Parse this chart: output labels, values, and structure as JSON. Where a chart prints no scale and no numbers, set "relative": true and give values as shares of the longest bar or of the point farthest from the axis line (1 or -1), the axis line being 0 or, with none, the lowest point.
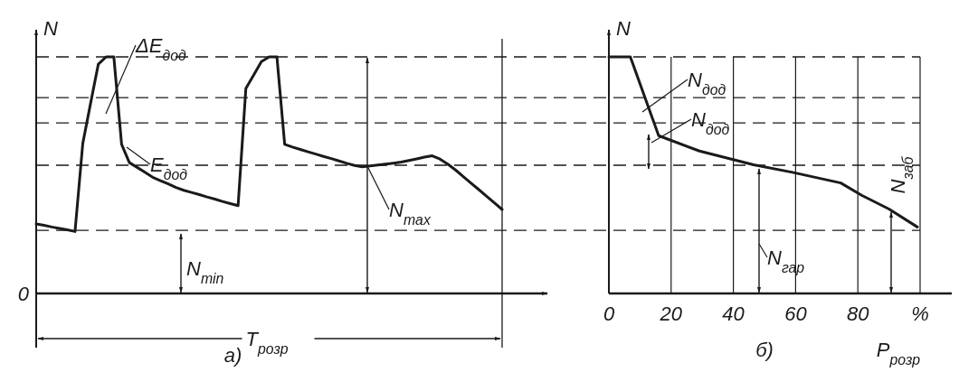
{
  "chart_data": [
    {
      "type": "line",
      "relative": true,
      "ylabel": "N",
      "xlabel": "T$_{розр}$",
      "subtitle": "а)",
      "color": "#1a1a1a",
      "line_style": "solid",
      "categories": [
        null,
        null,
        null,
        null,
        null,
        null,
        null,
        null,
        null,
        null,
        null,
        null,
        null,
        null,
        null,
        null,
        null,
        null,
        null,
        null,
        null,
        null,
        null,
        null,
        null,
        null,
        null,
        null,
        null,
        null,
        null,
        null,
        null,
        null,
        null,
        null,
        null,
        null,
        null,
        null,
        null,
        null,
        null,
        null,
        null,
        null,
        null,
        null,
        null,
        null,
        null,
        null,
        null,
        null,
        null,
        null,
        null,
        null,
        null,
        null,
        null
      ],
      "values": [
        0.294,
        0.288,
        0.281,
        0.275,
        0.269,
        0.262,
        0.634,
        0.803,
        0.969,
        1,
        1,
        0.63,
        0.553,
        0.533,
        0.512,
        0.491,
        0.477,
        0.463,
        0.448,
        0.436,
        0.427,
        0.418,
        0.408,
        0.399,
        0.389,
        0.38,
        0.371,
        0.866,
        0.923,
        0.98,
        1,
        1,
        0.63,
        0.619,
        0.609,
        0.599,
        0.589,
        0.579,
        0.57,
        0.56,
        0.55,
        0.541,
        0.535,
        0.539,
        0.543,
        0.547,
        0.551,
        0.555,
        0.562,
        0.569,
        0.576,
        0.582,
        0.568,
        0.547,
        0.522,
        0.494,
        0.466,
        0.439,
        0.411,
        0.383,
        0.355
      ],
      "annotations": [
        "ΔE$_{дод}$",
        "E$_{дод}$",
        "N$_{max}$",
        "N$_{min}$",
        "0"
      ]
    },
    {
      "type": "line",
      "relative": true,
      "tick_labels": "x",
      "ylabel": "N",
      "xlabel": "P$_{розр}$",
      "subtitle": "б)",
      "xlim": [
        0,
        100
      ],
      "color": "#1a1a1a",
      "line_style": "solid",
      "grid": "x",
      "xticks": [
        0,
        20,
        40,
        60,
        80,
        {
          "value": 100,
          "label": "%"
        }
      ],
      "x": [
        0,
        6.9,
        16,
        29.1,
        46.5,
        59,
        74.5,
        81.2,
        90,
        99.1
      ],
      "values": [
        1,
        1,
        0.667,
        0.602,
        0.544,
        0.512,
        0.467,
        0.415,
        0.357,
        0.281
      ],
      "ref_lines": [
        {
          "axis": "y",
          "value": 1,
          "line_style": "dashed"
        },
        {
          "axis": "y",
          "value": 0.828,
          "line_style": "dashed"
        },
        {
          "axis": "y",
          "value": 0.721,
          "line_style": "dashed"
        },
        {
          "axis": "y",
          "value": 0.542,
          "line_style": "dashed"
        },
        {
          "axis": "y",
          "value": 0.267,
          "line_style": "dashed"
        }
      ],
      "annotations": [
        "N$_{дод}$",
        "N$_{дод}$",
        "N$_{гар}$",
        "N$_{заб}$"
      ]
    }
  ]
}
